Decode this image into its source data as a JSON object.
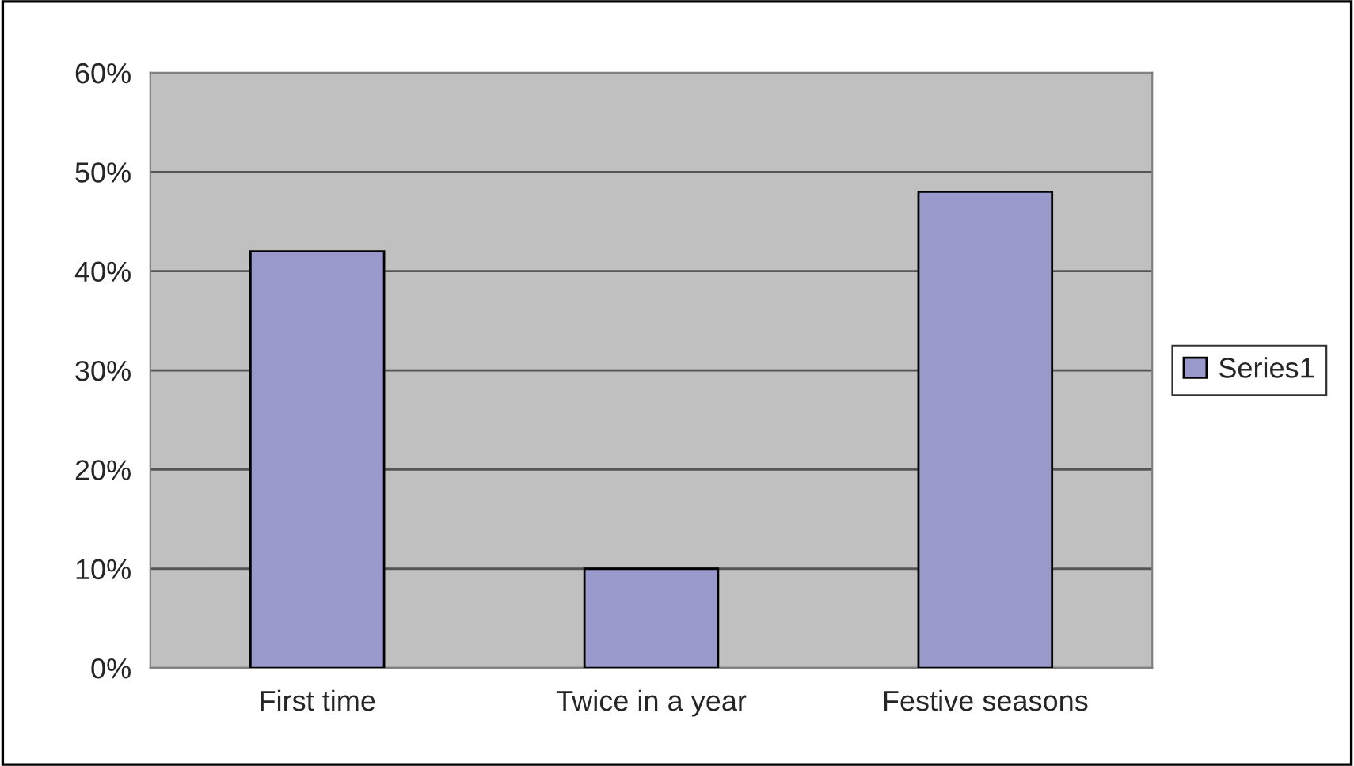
{
  "chart_data": {
    "type": "bar",
    "categories": [
      "First time",
      "Twice in a year",
      "Festive seasons"
    ],
    "series": [
      {
        "name": "Series1",
        "color": "#9999cc",
        "values": [
          42,
          10,
          48
        ]
      }
    ],
    "ylim": [
      0,
      60
    ],
    "yticks": [
      {
        "value": 0,
        "label": "0%"
      },
      {
        "value": 10,
        "label": "10%"
      },
      {
        "value": 20,
        "label": "20%"
      },
      {
        "value": 30,
        "label": "30%"
      },
      {
        "value": 40,
        "label": "40%"
      },
      {
        "value": 50,
        "label": "50%"
      },
      {
        "value": 60,
        "label": "60%"
      }
    ],
    "grid": "y",
    "legend": "right"
  }
}
